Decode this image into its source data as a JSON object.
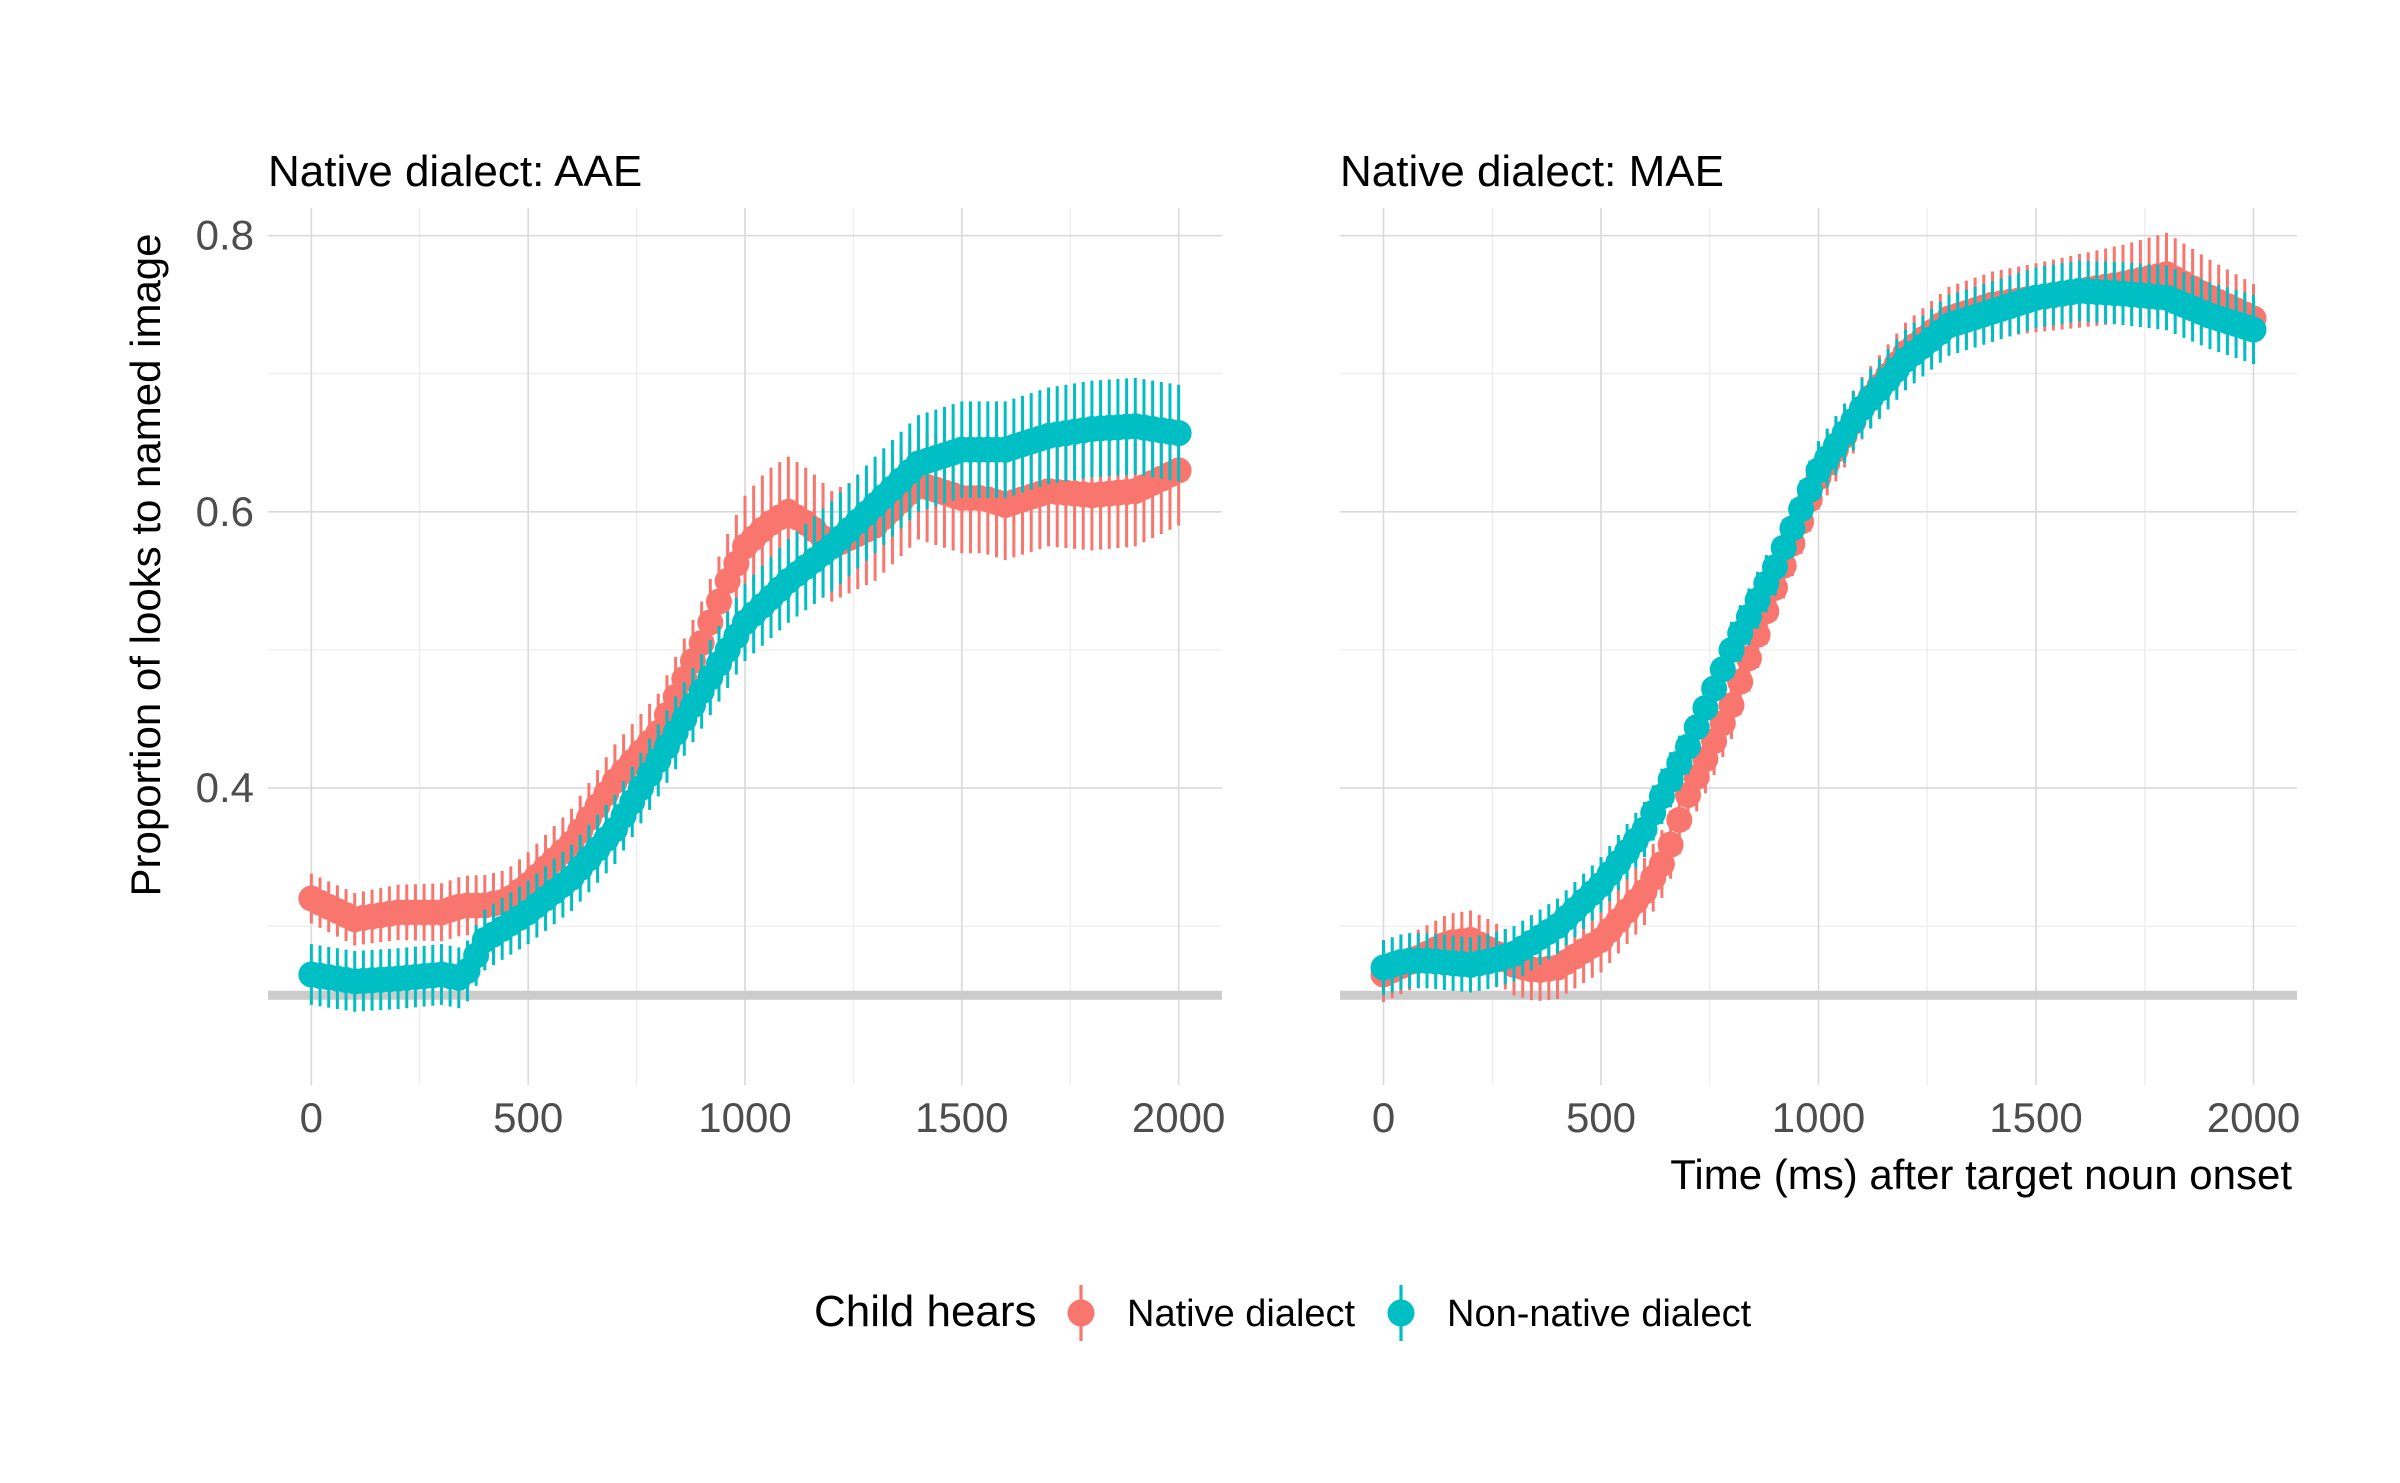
{
  "chart_data": {
    "type": "line",
    "ylabel": "Proportion of looks to named image",
    "xlabel": "Time (ms) after target noun onset",
    "xlim": [
      -100,
      2100
    ],
    "ylim": [
      0.185,
      0.82
    ],
    "x_ticks": [
      0,
      500,
      1000,
      1500,
      2000
    ],
    "x_tick_labels": [
      "0",
      "500",
      "1000",
      "1500",
      "2000"
    ],
    "y_ticks": [
      0.4,
      0.6,
      0.8
    ],
    "y_tick_labels": [
      "0.4",
      "0.6",
      "0.8"
    ],
    "reference_line": 0.25,
    "grid": true,
    "legend": {
      "title": "Child hears",
      "position": "bottom",
      "entries": [
        {
          "label": "Native dialect",
          "color": "#f8766d"
        },
        {
          "label": "Non-native dialect",
          "color": "#00bfc4"
        }
      ]
    },
    "colors": {
      "native": "#f8766d",
      "nonnative": "#00bfc4",
      "reference": "#cccccc"
    },
    "marks": {
      "error_bar": "vertical",
      "point": "filled-circle"
    },
    "panels": [
      {
        "title": "Native dialect: AAE",
        "series": [
          {
            "name": "Native dialect",
            "color": "#f8766d",
            "points": [
              [
                0,
                0.32
              ],
              [
                100,
                0.305
              ],
              [
                200,
                0.31
              ],
              [
                300,
                0.31
              ],
              [
                350,
                0.315
              ],
              [
                400,
                0.315
              ],
              [
                450,
                0.318
              ],
              [
                500,
                0.33
              ],
              [
                600,
                0.36
              ],
              [
                700,
                0.405
              ],
              [
                800,
                0.44
              ],
              [
                900,
                0.505
              ],
              [
                960,
                0.55
              ],
              [
                1000,
                0.575
              ],
              [
                1050,
                0.59
              ],
              [
                1100,
                0.6
              ],
              [
                1150,
                0.59
              ],
              [
                1200,
                0.575
              ],
              [
                1300,
                0.59
              ],
              [
                1400,
                0.62
              ],
              [
                1450,
                0.615
              ],
              [
                1500,
                0.61
              ],
              [
                1550,
                0.61
              ],
              [
                1600,
                0.605
              ],
              [
                1700,
                0.615
              ],
              [
                1800,
                0.612
              ],
              [
                1900,
                0.615
              ],
              [
                2000,
                0.63
              ]
            ],
            "error": [
              [
                0,
                0.018
              ],
              [
                400,
                0.022
              ],
              [
                600,
                0.025
              ],
              [
                900,
                0.03
              ],
              [
                1050,
                0.04
              ],
              [
                1300,
                0.04
              ],
              [
                1500,
                0.04
              ],
              [
                2000,
                0.04
              ]
            ]
          },
          {
            "name": "Non-native dialect",
            "color": "#00bfc4",
            "points": [
              [
                0,
                0.265
              ],
              [
                100,
                0.26
              ],
              [
                200,
                0.262
              ],
              [
                300,
                0.265
              ],
              [
                350,
                0.262
              ],
              [
                400,
                0.29
              ],
              [
                500,
                0.31
              ],
              [
                600,
                0.335
              ],
              [
                700,
                0.37
              ],
              [
                800,
                0.42
              ],
              [
                900,
                0.47
              ],
              [
                1000,
                0.52
              ],
              [
                1100,
                0.55
              ],
              [
                1200,
                0.575
              ],
              [
                1300,
                0.605
              ],
              [
                1400,
                0.635
              ],
              [
                1500,
                0.645
              ],
              [
                1600,
                0.645
              ],
              [
                1700,
                0.655
              ],
              [
                1800,
                0.66
              ],
              [
                1900,
                0.662
              ],
              [
                2000,
                0.657
              ]
            ],
            "error": [
              [
                0,
                0.022
              ],
              [
                400,
                0.022
              ],
              [
                700,
                0.025
              ],
              [
                1000,
                0.028
              ],
              [
                1300,
                0.035
              ],
              [
                1600,
                0.035
              ],
              [
                2000,
                0.035
              ]
            ]
          }
        ]
      },
      {
        "title": "Native dialect: MAE",
        "series": [
          {
            "name": "Native dialect",
            "color": "#f8766d",
            "points": [
              [
                0,
                0.265
              ],
              [
                100,
                0.28
              ],
              [
                150,
                0.288
              ],
              [
                200,
                0.29
              ],
              [
                250,
                0.282
              ],
              [
                300,
                0.272
              ],
              [
                350,
                0.268
              ],
              [
                400,
                0.27
              ],
              [
                500,
                0.29
              ],
              [
                600,
                0.325
              ],
              [
                650,
                0.35
              ],
              [
                700,
                0.395
              ],
              [
                800,
                0.46
              ],
              [
                900,
                0.545
              ],
              [
                1000,
                0.625
              ],
              [
                1100,
                0.675
              ],
              [
                1200,
                0.715
              ],
              [
                1300,
                0.74
              ],
              [
                1400,
                0.75
              ],
              [
                1500,
                0.755
              ],
              [
                1600,
                0.76
              ],
              [
                1700,
                0.765
              ],
              [
                1800,
                0.772
              ],
              [
                1900,
                0.755
              ],
              [
                2000,
                0.74
              ]
            ],
            "error": [
              [
                0,
                0.02
              ],
              [
                300,
                0.022
              ],
              [
                700,
                0.025
              ],
              [
                1200,
                0.022
              ],
              [
                1500,
                0.025
              ],
              [
                1800,
                0.03
              ],
              [
                2000,
                0.025
              ]
            ]
          },
          {
            "name": "Non-native dialect",
            "color": "#00bfc4",
            "points": [
              [
                0,
                0.27
              ],
              [
                50,
                0.275
              ],
              [
                100,
                0.275
              ],
              [
                200,
                0.272
              ],
              [
                250,
                0.275
              ],
              [
                300,
                0.28
              ],
              [
                350,
                0.29
              ],
              [
                400,
                0.3
              ],
              [
                500,
                0.33
              ],
              [
                600,
                0.37
              ],
              [
                700,
                0.43
              ],
              [
                800,
                0.5
              ],
              [
                900,
                0.56
              ],
              [
                1000,
                0.63
              ],
              [
                1100,
                0.675
              ],
              [
                1200,
                0.71
              ],
              [
                1300,
                0.735
              ],
              [
                1400,
                0.745
              ],
              [
                1500,
                0.755
              ],
              [
                1600,
                0.76
              ],
              [
                1700,
                0.758
              ],
              [
                1800,
                0.755
              ],
              [
                1900,
                0.742
              ],
              [
                2000,
                0.732
              ]
            ],
            "error": [
              [
                0,
                0.02
              ],
              [
                300,
                0.02
              ],
              [
                700,
                0.02
              ],
              [
                1200,
                0.022
              ],
              [
                1600,
                0.022
              ],
              [
                2000,
                0.025
              ]
            ]
          }
        ]
      }
    ]
  }
}
